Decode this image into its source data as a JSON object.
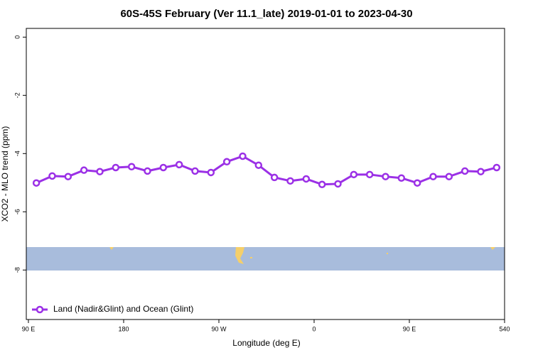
{
  "chart_data": {
    "type": "line",
    "title": "60S-45S February (Ver 11.1_late)   2019-01-01 to 2023-04-30",
    "x_label": "Longitude (deg E)",
    "y_label": "XCO2 - MLO trend (ppm)",
    "x": [
      97.5,
      112.5,
      127.5,
      142.5,
      157.5,
      172.5,
      187.5,
      202.5,
      217.5,
      232.5,
      247.5,
      262.5,
      277.5,
      292.5,
      307.5,
      322.5,
      337.5,
      352.5,
      367.5,
      382.5,
      397.5,
      412.5,
      427.5,
      442.5,
      457.5,
      472.5,
      487.5,
      502.5,
      517.5,
      532.5
    ],
    "series": [
      {
        "name": "Land (Nadir&Glint) and Ocean (Glint)",
        "color": "#9b30e6",
        "values": [
          -5.01,
          -4.77,
          -4.79,
          -4.57,
          -4.62,
          -4.48,
          -4.45,
          -4.6,
          -4.48,
          -4.38,
          -4.6,
          -4.65,
          -4.28,
          -4.09,
          -4.4,
          -4.82,
          -4.94,
          -4.87,
          -5.06,
          -5.04,
          -4.72,
          -4.72,
          -4.79,
          -4.84,
          -5.01,
          -4.79,
          -4.79,
          -4.6,
          -4.62,
          -4.48
        ]
      }
    ],
    "xlim": [
      88,
      540
    ],
    "xticks": [
      {
        "value": 90,
        "label": "90 E"
      },
      180,
      {
        "value": 270,
        "label": "90 W"
      },
      {
        "value": 360,
        "label": "0"
      },
      {
        "value": 450,
        "label": "90 E"
      },
      540
    ],
    "ylim": [
      -9.7,
      0.3
    ],
    "yticks": [
      0,
      -2,
      -4,
      -6,
      -8
    ],
    "legend": "bottom-left"
  }
}
